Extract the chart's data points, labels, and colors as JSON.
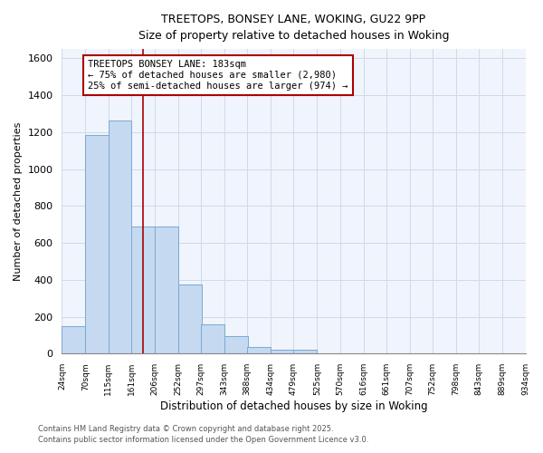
{
  "title1": "TREETOPS, BONSEY LANE, WOKING, GU22 9PP",
  "title2": "Size of property relative to detached houses in Woking",
  "xlabel": "Distribution of detached houses by size in Woking",
  "ylabel": "Number of detached properties",
  "footer1": "Contains HM Land Registry data © Crown copyright and database right 2025.",
  "footer2": "Contains public sector information licensed under the Open Government Licence v3.0.",
  "annotation_title": "TREETOPS BONSEY LANE: 183sqm",
  "annotation_line1": "← 75% of detached houses are smaller (2,980)",
  "annotation_line2": "25% of semi-detached houses are larger (974) →",
  "property_size": 183,
  "bin_edges": [
    24,
    70,
    115,
    161,
    206,
    252,
    297,
    343,
    388,
    434,
    479,
    525,
    570,
    616,
    661,
    707,
    752,
    798,
    843,
    889,
    934
  ],
  "bin_counts": [
    150,
    1185,
    1265,
    690,
    690,
    375,
    160,
    95,
    35,
    20,
    20,
    0,
    0,
    0,
    0,
    0,
    0,
    0,
    0,
    0
  ],
  "bar_color": "#c5d9f0",
  "bar_edge_color": "#7aaad0",
  "vline_color": "#aa0000",
  "annotation_box_color": "#aa0000",
  "grid_color": "#d0dae8",
  "bg_color": "#ffffff",
  "plot_bg_color": "#f0f4fc",
  "ylim": [
    0,
    1650
  ],
  "yticks": [
    0,
    200,
    400,
    600,
    800,
    1000,
    1200,
    1400,
    1600
  ]
}
